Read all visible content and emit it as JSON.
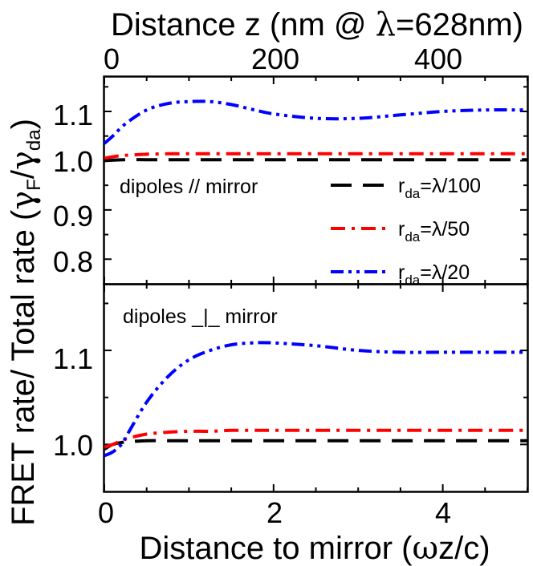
{
  "chart_data": [
    {
      "type": "line",
      "title": "",
      "xlabel": "Distance to mirror (ωz/c)",
      "ylabel": "FRET rate/ Total rate (γF/γda)",
      "ylabel_parts": {
        "main": "FRET rate/ Total rate (",
        "g1": "γ",
        "s1": "F",
        "slash": "/",
        "g2": "γ",
        "s2": "da",
        "close": ")"
      },
      "x2label": "Distance z (nm @ λ=628nm)",
      "x2label_parts": {
        "pre": "Distance z (nm @ ",
        "lambda": "λ",
        "post": "=628nm)"
      },
      "x2ticks": [
        "0",
        "200",
        "400"
      ],
      "annotation": "dipoles // mirror",
      "xlim": [
        0,
        5
      ],
      "ylim": [
        0.75,
        1.17
      ],
      "yticks": [
        "0.8",
        "0.9",
        "1.0",
        "1.1"
      ],
      "grid": false,
      "legend_position": "lower-right",
      "x": [
        0,
        0.1,
        0.25,
        0.5,
        0.75,
        1.0,
        1.25,
        1.5,
        1.75,
        2.0,
        2.5,
        3.0,
        3.5,
        4.0,
        4.5,
        5.0
      ],
      "series": [
        {
          "name": "rda=λ/100",
          "label_main": "r",
          "label_sub": "da",
          "label_post": "=λ/100",
          "style": "dash",
          "color": "#000000",
          "values": [
            1.0,
            1.001,
            1.002,
            1.002,
            1.002,
            1.002,
            1.002,
            1.002,
            1.002,
            1.002,
            1.002,
            1.002,
            1.002,
            1.002,
            1.002,
            1.002
          ]
        },
        {
          "name": "rda=λ/50",
          "label_main": "r",
          "label_sub": "da",
          "label_post": "=λ/50",
          "style": "dashdot",
          "color": "#ff0000",
          "values": [
            1.005,
            1.008,
            1.011,
            1.013,
            1.014,
            1.014,
            1.014,
            1.014,
            1.014,
            1.014,
            1.014,
            1.014,
            1.014,
            1.014,
            1.014,
            1.014
          ]
        },
        {
          "name": "rda=λ/20",
          "label_main": "r",
          "label_sub": "da",
          "label_post": "=λ/20",
          "style": "dashdotdot",
          "color": "#0000ff",
          "values": [
            1.035,
            1.05,
            1.075,
            1.103,
            1.116,
            1.12,
            1.12,
            1.114,
            1.104,
            1.095,
            1.086,
            1.086,
            1.093,
            1.1,
            1.103,
            1.103
          ]
        }
      ]
    },
    {
      "type": "line",
      "title": "",
      "xlabel": "Distance to mirror (ωz/c)",
      "xlabel_parts": {
        "pre": "Distance to mirror (",
        "omega": "ω",
        "post": "z/c)"
      },
      "annotation": "dipoles _|_ mirror",
      "xlim": [
        0,
        5
      ],
      "ylim": [
        0.95,
        1.17
      ],
      "xticks": [
        "0",
        "2",
        "4"
      ],
      "yticks": [
        "1.0",
        "1.1"
      ],
      "grid": false,
      "x": [
        0,
        0.1,
        0.2,
        0.3,
        0.5,
        0.75,
        1.0,
        1.25,
        1.5,
        1.75,
        2.0,
        2.5,
        3.0,
        3.5,
        4.0,
        4.5,
        5.0
      ],
      "series": [
        {
          "name": "rda=λ/100",
          "style": "dash",
          "color": "#000000",
          "values": [
            0.995,
            1.0,
            1.002,
            1.003,
            1.004,
            1.004,
            1.004,
            1.004,
            1.004,
            1.004,
            1.004,
            1.004,
            1.004,
            1.004,
            1.004,
            1.004,
            1.004
          ]
        },
        {
          "name": "rda=λ/50",
          "style": "dashdot",
          "color": "#ff0000",
          "values": [
            0.997,
            1.0,
            1.004,
            1.007,
            1.011,
            1.013,
            1.014,
            1.014,
            1.015,
            1.015,
            1.015,
            1.015,
            1.015,
            1.015,
            1.015,
            1.015,
            1.015
          ]
        },
        {
          "name": "rda=λ/20",
          "style": "dashdotdot",
          "color": "#0000ff",
          "values": [
            0.988,
            0.992,
            1.0,
            1.015,
            1.045,
            1.072,
            1.09,
            1.1,
            1.106,
            1.108,
            1.108,
            1.105,
            1.1,
            1.098,
            1.098,
            1.098,
            1.098
          ]
        }
      ]
    }
  ]
}
